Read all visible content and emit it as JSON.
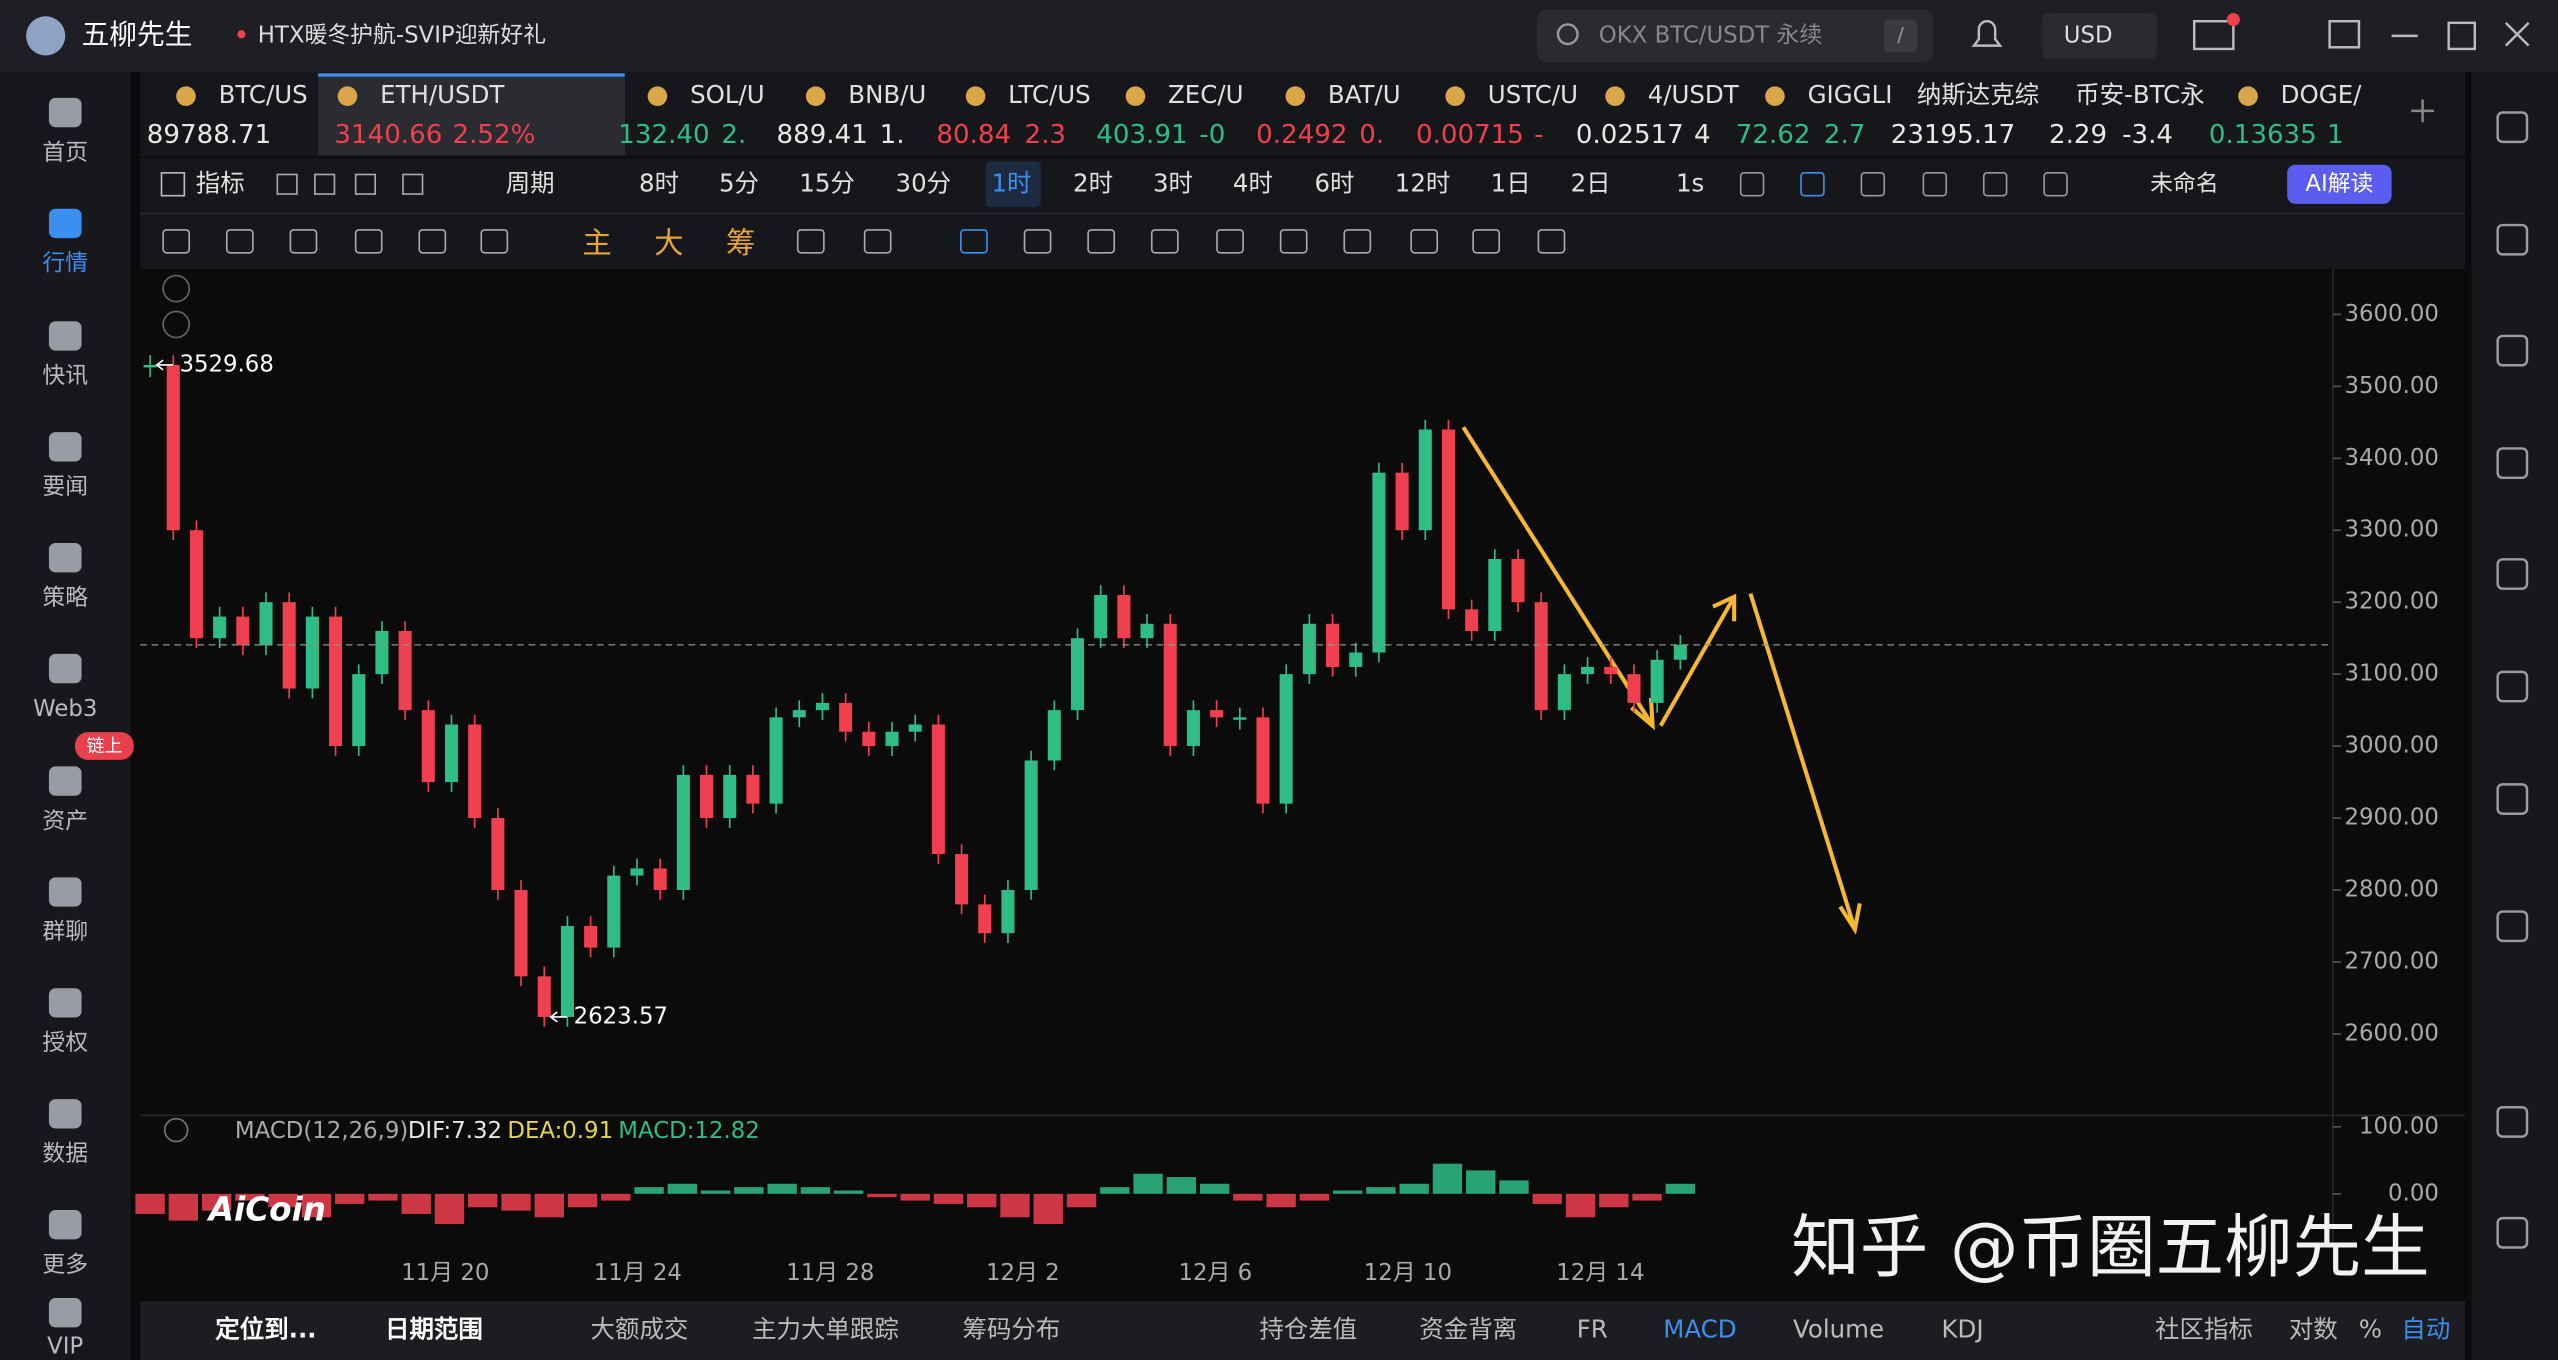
{
  "app": {
    "title": "五柳先生",
    "notice": "HTX暖冬护航-SVIP迎新好礼",
    "search": "OKX BTC/USDT 永续",
    "search_key": "/",
    "currency": "USD"
  },
  "sidebar": {
    "items": [
      "首页",
      "行情",
      "快讯",
      "要闻",
      "策略",
      "Web3",
      "资产",
      "群聊",
      "授权",
      "数据",
      "更多",
      "VIP"
    ],
    "badge": "链上"
  },
  "tickers": [
    {
      "name": "BTC/US",
      "price": "89788.71",
      "color": "#e8e8e8"
    },
    {
      "name": "ETH/USDT",
      "price": "3140.66",
      "change": "2.52%",
      "color": "#f0404e"
    },
    {
      "name": "SOL/U",
      "price": "132.40",
      "change": "2.",
      "color": "#2ebd85"
    },
    {
      "name": "BNB/U",
      "price": "889.41",
      "change": "1.",
      "color": "#e8e8e8"
    },
    {
      "name": "LTC/US",
      "price": "80.84",
      "change": "2.3",
      "color": "#f0404e"
    },
    {
      "name": "ZEC/U",
      "price": "403.91",
      "change": "-0",
      "color": "#2ebd85"
    },
    {
      "name": "BAT/U",
      "price": "0.2492",
      "change": "0.",
      "color": "#f0404e"
    },
    {
      "name": "USTC/U",
      "price": "0.00715",
      "change": "-",
      "color": "#f0404e"
    },
    {
      "name": "4/USDT",
      "price": "0.02517",
      "change": "4",
      "color": "#e8e8e8"
    },
    {
      "name": "GIGGLI",
      "price": "72.62",
      "change": "2.7",
      "color": "#2ebd85"
    },
    {
      "name": "纳斯达克综",
      "price": "23195.17",
      "color": "#e8e8e8"
    },
    {
      "name": "币安-BTC永",
      "price": "2.29",
      "change": "-3.4",
      "color": "#e8e8e8"
    },
    {
      "name": "DOGE/",
      "price": "0.13635",
      "change": "1",
      "color": "#2ebd85"
    }
  ],
  "toolbar": {
    "indicator": "指标",
    "period": "周期",
    "intervals": [
      "8时",
      "5分",
      "15分",
      "30分",
      "1时",
      "2时",
      "3时",
      "4时",
      "6时",
      "12时",
      "1日",
      "2日"
    ],
    "active": "1时",
    "tick": "1s",
    "layout": "未命名",
    "ai": "AI解读"
  },
  "drawing_tools": [
    "主",
    "大",
    "筹"
  ],
  "chart_data": {
    "type": "candlestick",
    "values": [
      3529.68,
      3300,
      3150,
      3180,
      3140,
      3200,
      3080,
      3180,
      3000,
      3100,
      3160,
      3050,
      2950,
      3030,
      2900,
      2800,
      2680,
      2623.57,
      2750,
      2720,
      2820,
      2830,
      2800,
      2960,
      2900,
      2960,
      2920,
      3040,
      3050,
      3060,
      3020,
      3000,
      3020,
      3030,
      2850,
      2780,
      2740,
      2800,
      2980,
      3050,
      3150,
      3210,
      3150,
      3170,
      3000,
      3050,
      3040,
      3040,
      2920,
      3100,
      3170,
      3110,
      3130,
      3380,
      3300,
      3440,
      3190,
      3160,
      3260,
      3200,
      3050,
      3100,
      3110,
      3100,
      3060,
      3120,
      3140.66
    ],
    "up_color": "#2ebd85",
    "down_color": "#f0404e",
    "ylim": [
      2489,
      3663
    ],
    "yticks": [
      {
        "value": 2600,
        "label": "2600.00"
      },
      {
        "value": 2700,
        "label": "2700.00"
      },
      {
        "value": 2800,
        "label": "2800.00"
      },
      {
        "value": 2900,
        "label": "2900.00"
      },
      {
        "value": 3000,
        "label": "3000.00"
      },
      {
        "value": 3100,
        "label": "3100.00"
      },
      {
        "value": 3200,
        "label": "3200.00"
      },
      {
        "value": 3300,
        "label": "3300.00"
      },
      {
        "value": 3400,
        "label": "3400.00"
      },
      {
        "value": 3500,
        "label": "3500.00"
      },
      {
        "value": 3600,
        "label": "3600.00"
      }
    ],
    "annotations": [
      {
        "value": 3529.68,
        "label": "3529.68"
      },
      {
        "value": 2623.57,
        "label": "2623.57"
      }
    ],
    "xticks": [
      "11月 20",
      "11月 24",
      "11月 28",
      "12月 2",
      "12月 6",
      "12月 10",
      "12月 14"
    ],
    "macd": {
      "title": "MACD(12,26,9)",
      "dif": "DIF:7.32",
      "dea": "DEA:0.91",
      "macd": "MACD:12.82",
      "values": [
        -30,
        -40,
        -25,
        -10,
        -20,
        -35,
        -15,
        -10,
        -30,
        -45,
        -20,
        -25,
        -35,
        -20,
        -10,
        10,
        15,
        5,
        10,
        15,
        10,
        5,
        -5,
        -10,
        -15,
        -20,
        -35,
        -45,
        -20,
        10,
        30,
        25,
        15,
        -10,
        -20,
        -10,
        5,
        10,
        15,
        45,
        35,
        20,
        -15,
        -35,
        -20,
        -10,
        15
      ],
      "ylim": [
        -80,
        117
      ],
      "yticks": [
        {
          "value": 100,
          "label": "100.00"
        },
        {
          "value": 0,
          "label": "0.00"
        }
      ]
    }
  },
  "bottom_bar": {
    "left": [
      "定位到...",
      "日期范围",
      "大额成交",
      "主力大单跟踪",
      "筹码分布"
    ],
    "right": [
      "持仓差值",
      "资金背离",
      "FR",
      "MACD",
      "Volume",
      "KDJ",
      "社区指标",
      "对数",
      "%",
      "自动"
    ],
    "active": [
      "MACD",
      "自动"
    ]
  },
  "watermark": {
    "zhihu": "知乎 @币圈五柳先生",
    "aicoin": "AiCoin"
  }
}
